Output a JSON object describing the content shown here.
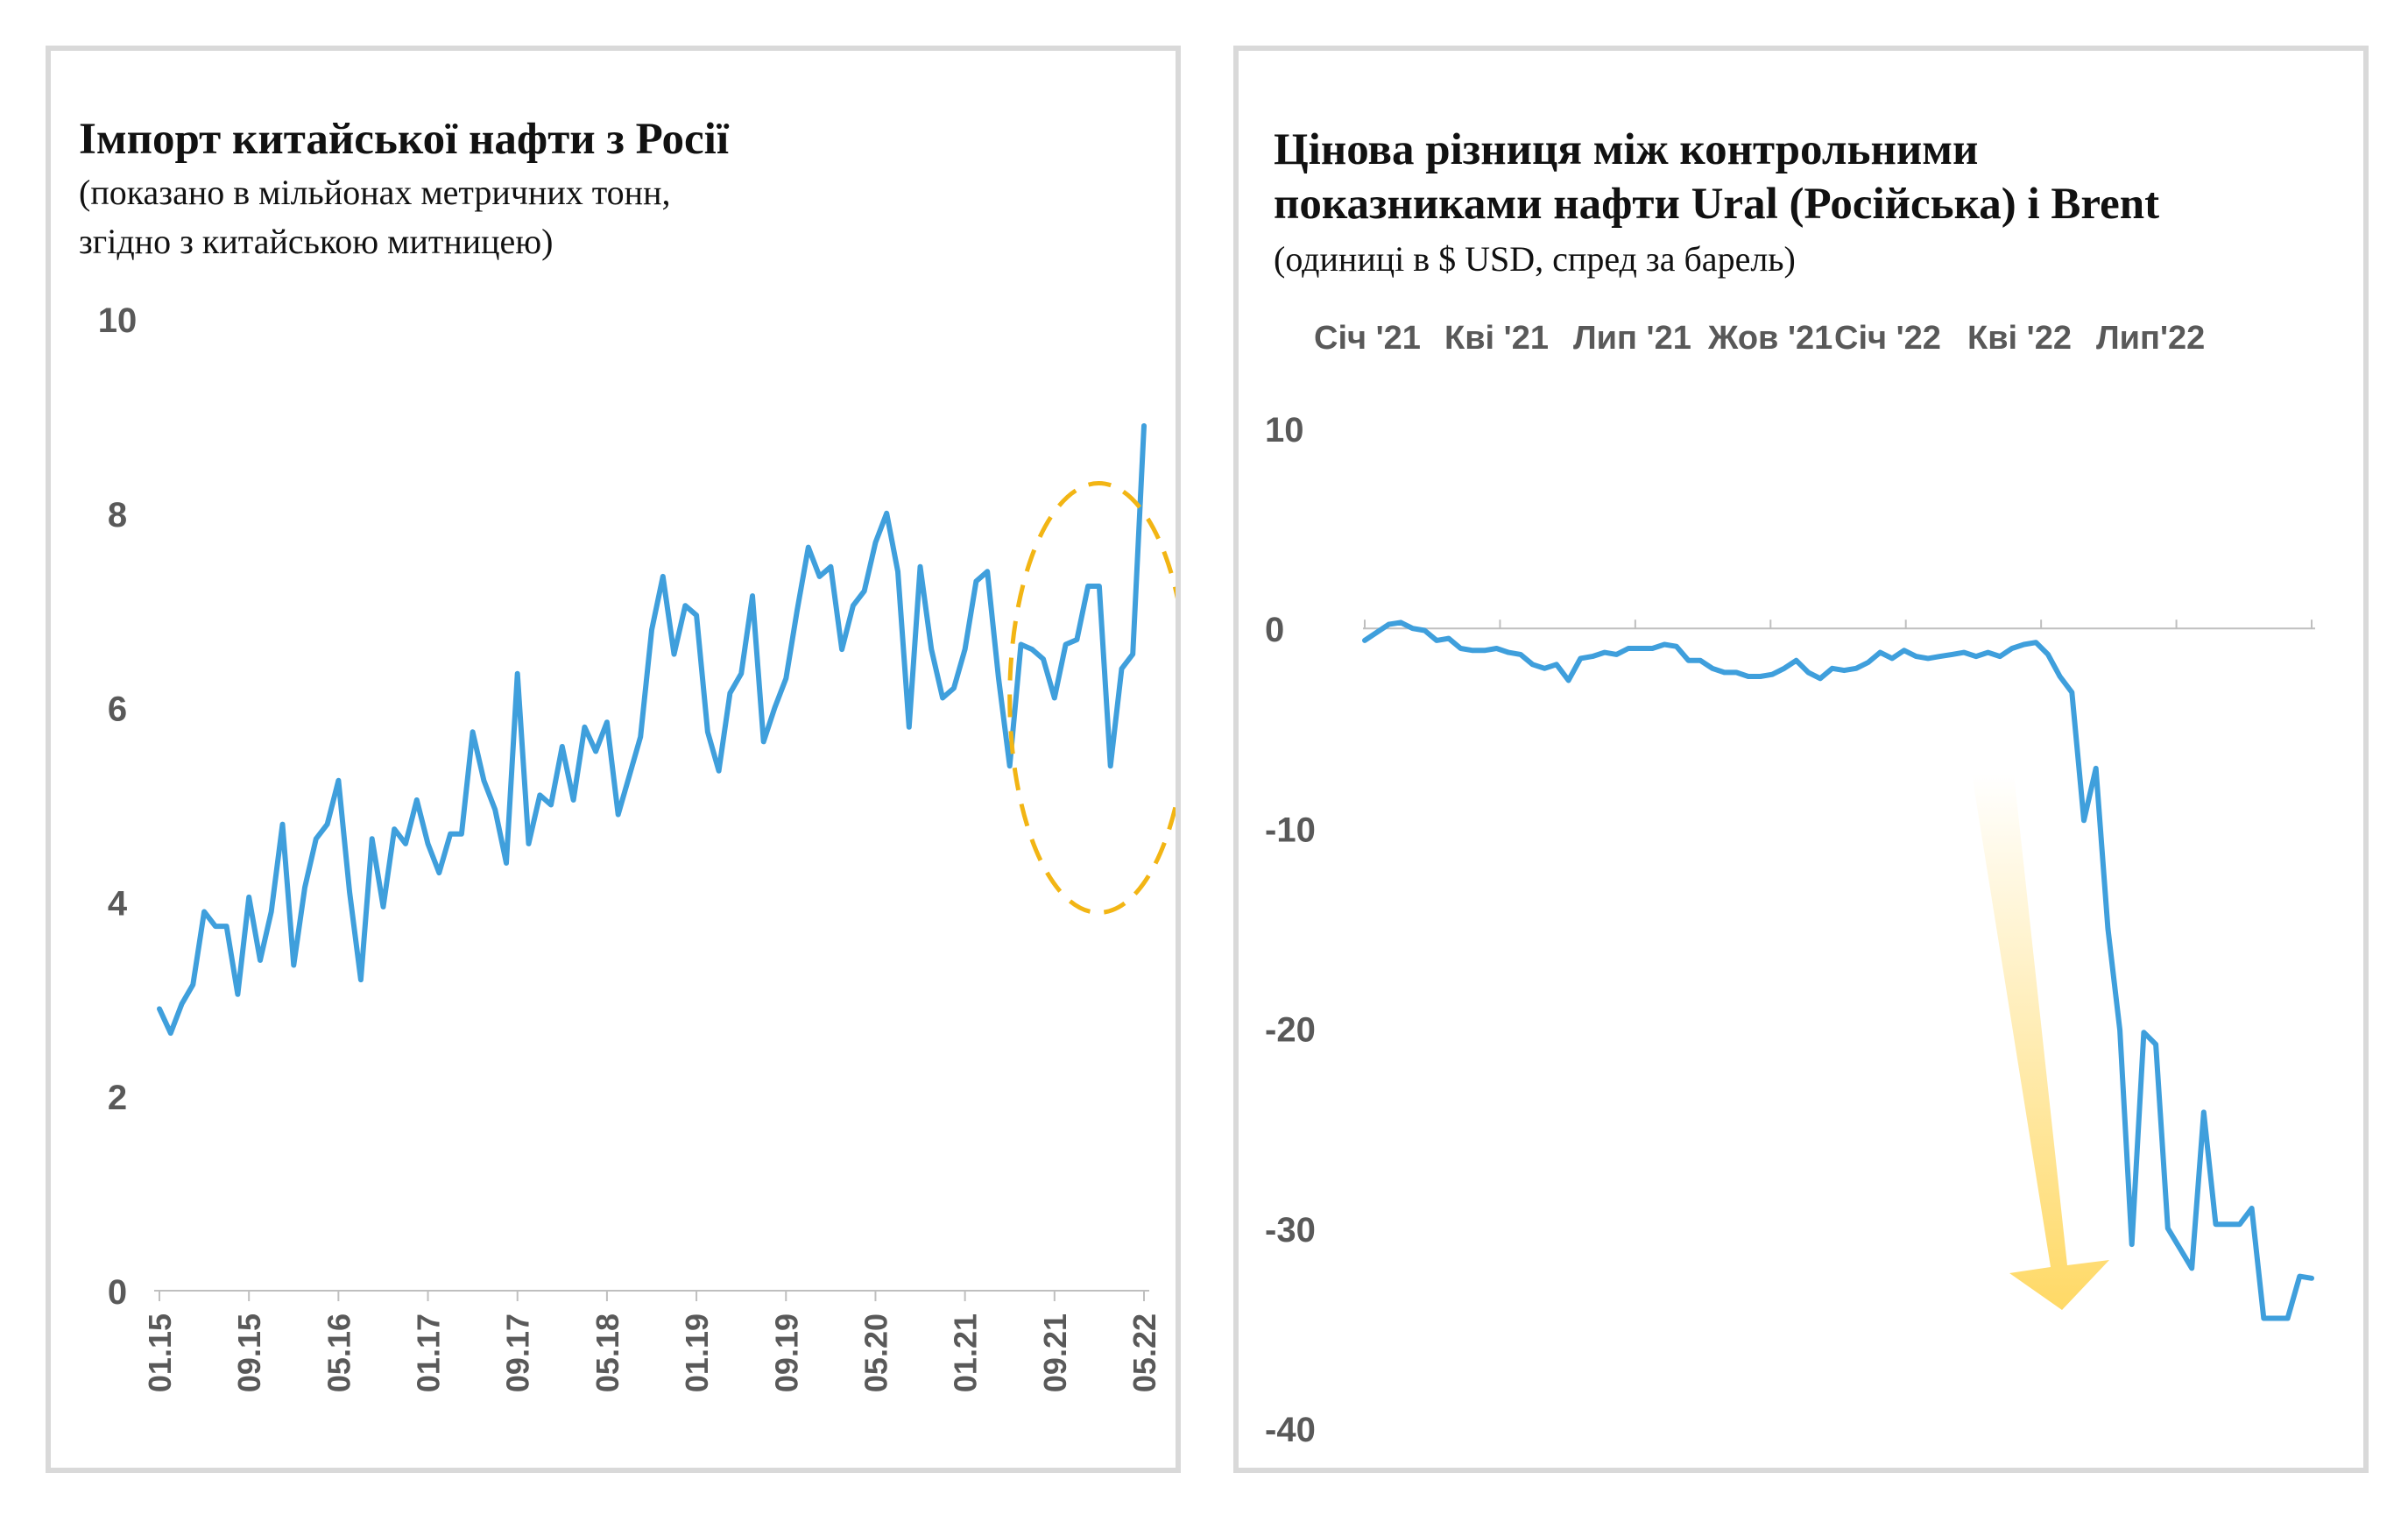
{
  "colors": {
    "line": "#3f9fdc",
    "highlight": "#f2b514",
    "border": "#d9d9d9",
    "axis_text": "#595959"
  },
  "chart_data": [
    {
      "type": "line",
      "title": "Імпорт китайської нафти з Росії",
      "subtitle": "(показано в мільйонах метричних тонн, згідно з китайською митницею)",
      "subtitle_lines": [
        "(показано в мільйонах метричних тонн,",
        "згідно з китайською митницею)"
      ],
      "xlabel": "",
      "ylabel": "",
      "ylim": [
        0,
        10
      ],
      "yticks": [
        0,
        2,
        4,
        6,
        8,
        10
      ],
      "xticks": [
        "01.15",
        "09.15",
        "05.16",
        "01.17",
        "09.17",
        "05.18",
        "01.19",
        "09.19",
        "05.20",
        "01.21",
        "09.21",
        "05.22"
      ],
      "x_start": "01.15",
      "x_end": "05.22",
      "annotation": "dashed oval highlighting the most recent months",
      "series": [
        {
          "values": [
            2.9,
            2.65,
            2.95,
            3.15,
            3.9,
            3.75,
            3.75,
            3.05,
            4.05,
            3.4,
            3.9,
            4.8,
            3.35,
            4.15,
            4.65,
            4.8,
            5.25,
            4.1,
            3.2,
            4.65,
            3.95,
            4.75,
            4.6,
            5.05,
            4.6,
            4.3,
            4.7,
            4.7,
            5.75,
            5.25,
            4.95,
            4.4,
            6.35,
            4.6,
            5.1,
            5.0,
            5.6,
            5.05,
            5.8,
            5.55,
            5.85,
            4.9,
            5.3,
            5.7,
            6.8,
            7.35,
            6.55,
            7.05,
            6.95,
            5.75,
            5.35,
            6.15,
            6.35,
            7.15,
            5.65,
            6.0,
            6.3,
            7.0,
            7.65,
            7.35,
            7.45,
            6.6,
            7.05,
            7.2,
            7.7,
            8.0,
            7.4,
            5.8,
            7.45,
            6.6,
            6.1,
            6.2,
            6.6,
            7.3,
            7.4,
            6.3,
            5.4,
            6.65,
            6.6,
            6.5,
            6.1,
            6.65,
            6.7,
            7.25,
            7.25,
            5.4,
            6.4,
            6.55,
            8.9
          ]
        }
      ]
    },
    {
      "type": "line",
      "title": "Цінова різниця між контрольними показниками нафти Ural (Російська) і Brent",
      "title_lines": [
        "Цінова різниця між контрольними",
        "показниками нафти Ural (Російська) і Brent"
      ],
      "subtitle": "(одиниці в $ USD, спред за барель)",
      "xlabel": "",
      "ylabel": "",
      "ylim": [
        -40,
        10
      ],
      "yticks": [
        10,
        0,
        -10,
        -20,
        -30,
        -40
      ],
      "xticks": [
        "Січ '21",
        "Кві '21",
        "Лип '21",
        "Жов '21",
        "Січ '22",
        "Кві '22",
        "Лип'22"
      ],
      "annotation": "gradient yellow arrow pointing down at the drop",
      "series": [
        {
          "values": [
            -0.6,
            -0.2,
            0.2,
            0.3,
            0.0,
            -0.1,
            -0.6,
            -0.5,
            -1.0,
            -1.1,
            -1.1,
            -1.0,
            -1.2,
            -1.3,
            -1.8,
            -2.0,
            -1.8,
            -2.6,
            -1.5,
            -1.4,
            -1.2,
            -1.3,
            -1.0,
            -1.0,
            -1.0,
            -0.8,
            -0.9,
            -1.6,
            -1.6,
            -2.0,
            -2.2,
            -2.2,
            -2.4,
            -2.4,
            -2.3,
            -2.0,
            -1.6,
            -2.2,
            -2.5,
            -2.0,
            -2.1,
            -2.0,
            -1.7,
            -1.2,
            -1.5,
            -1.1,
            -1.4,
            -1.5,
            -1.4,
            -1.3,
            -1.2,
            -1.4,
            -1.2,
            -1.4,
            -1.0,
            -0.8,
            -0.7,
            -1.3,
            -2.4,
            -3.2,
            -9.6,
            -7.0,
            -15.0,
            -20.1,
            -30.8,
            -20.2,
            -20.8,
            -30.0,
            -31.0,
            -32.0,
            -24.2,
            -29.8,
            -29.8,
            -29.8,
            -29.0,
            -34.5,
            -34.5,
            -34.5,
            -32.4,
            -32.5
          ]
        }
      ]
    }
  ]
}
